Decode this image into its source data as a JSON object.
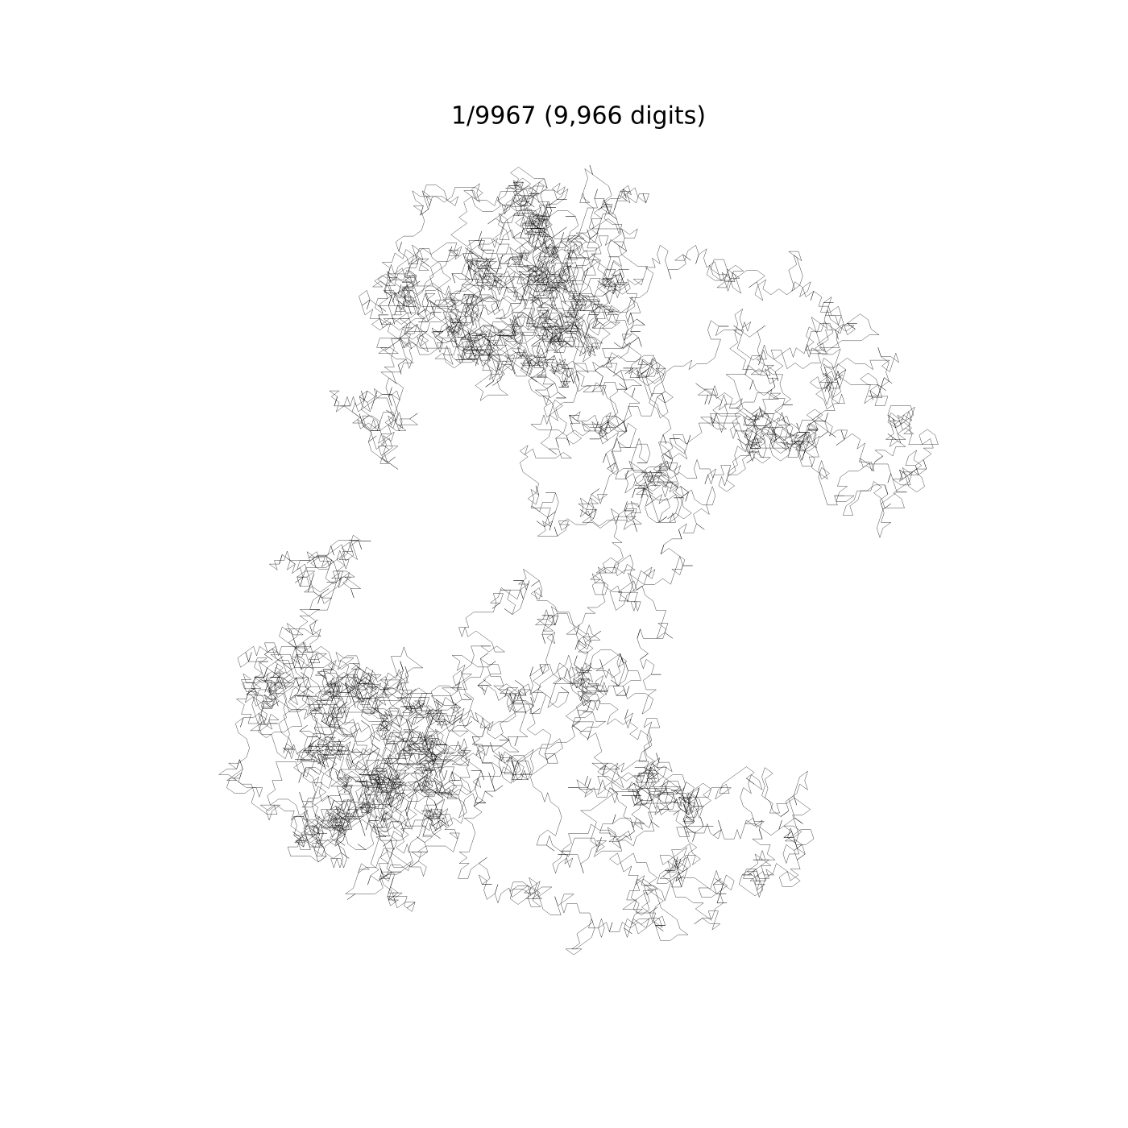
{
  "chart_data": {
    "type": "digit-walk",
    "title": "1/9967 (9,966 digits)",
    "numerator": 1,
    "denominator": 9967,
    "digits": 9966,
    "color": "#000000"
  }
}
